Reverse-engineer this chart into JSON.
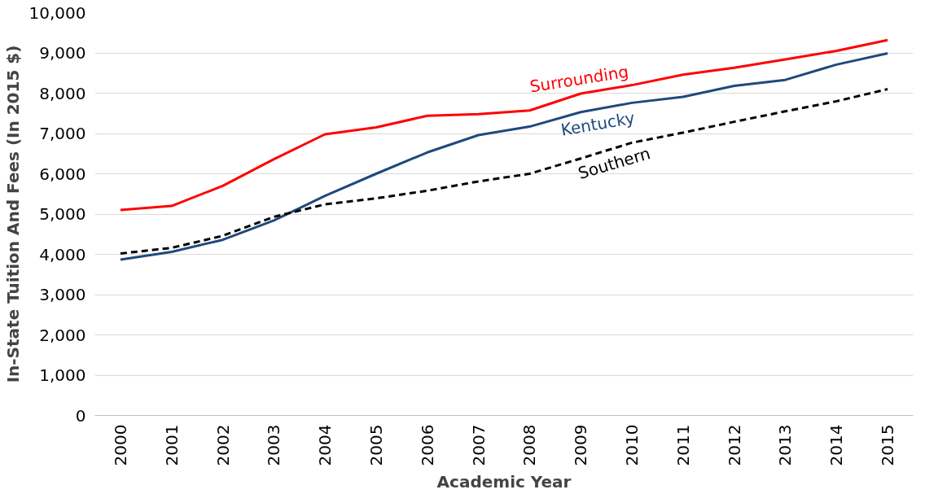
{
  "chart_data": {
    "type": "line",
    "xlabel": "Academic Year",
    "ylabel": "In-State Tuition And Fees (In 2015 $)",
    "categories": [
      "2000",
      "2001",
      "2002",
      "2003",
      "2004",
      "2005",
      "2006",
      "2007",
      "2008",
      "2009",
      "2010",
      "2011",
      "2012",
      "2013",
      "2014",
      "2015"
    ],
    "series": [
      {
        "name": "Surrounding",
        "color": "#ff0000",
        "line_style": "solid",
        "values": [
          5100,
          5200,
          5700,
          6360,
          6980,
          7150,
          7440,
          7480,
          7570,
          7990,
          8200,
          8460,
          8630,
          8840,
          9050,
          9320
        ]
      },
      {
        "name": "Kentucky",
        "color": "#1f497d",
        "line_style": "solid",
        "values": [
          3870,
          4060,
          4360,
          4840,
          5450,
          6000,
          6530,
          6960,
          7170,
          7530,
          7760,
          7910,
          8180,
          8330,
          8710,
          8990
        ]
      },
      {
        "name": "Southern",
        "color": "#000000",
        "line_style": "dashed",
        "values": [
          4020,
          4160,
          4460,
          4930,
          5240,
          5390,
          5580,
          5810,
          6000,
          6380,
          6770,
          7020,
          7290,
          7550,
          7800,
          8100
        ]
      }
    ],
    "ylim": [
      0,
      10000
    ],
    "yticks": [
      {
        "value": 0,
        "label": "0"
      },
      {
        "value": 1000,
        "label": "1,000"
      },
      {
        "value": 2000,
        "label": "2,000"
      },
      {
        "value": 3000,
        "label": "3,000"
      },
      {
        "value": 4000,
        "label": "4,000"
      },
      {
        "value": 5000,
        "label": "5,000"
      },
      {
        "value": 6000,
        "label": "6,000"
      },
      {
        "value": 7000,
        "label": "7,000"
      },
      {
        "value": 8000,
        "label": "8,000"
      },
      {
        "value": 9000,
        "label": "9,000"
      },
      {
        "value": 10000,
        "label": "10,000"
      }
    ],
    "grid": "y",
    "marker": "none"
  }
}
